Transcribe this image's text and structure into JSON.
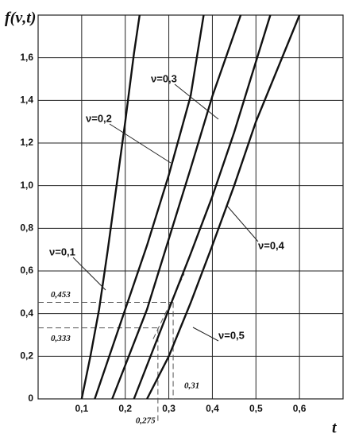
{
  "chart_data": {
    "type": "line",
    "ylabel": "f(ν,t)",
    "xlabel": "t",
    "xlim": [
      0,
      0.7
    ],
    "ylim": [
      0,
      1.8
    ],
    "xticks": [
      {
        "value": 0.1,
        "label": "0,1"
      },
      {
        "value": 0.2,
        "label": "0,2"
      },
      {
        "value": 0.3,
        "label": "0,3"
      },
      {
        "value": 0.4,
        "label": "0,4"
      },
      {
        "value": 0.5,
        "label": "0,5"
      },
      {
        "value": 0.6,
        "label": "0,6"
      }
    ],
    "yticks": [
      0,
      {
        "value": 0.2,
        "label": "0,2"
      },
      {
        "value": 0.4,
        "label": "0,4"
      },
      {
        "value": 0.6,
        "label": "0,6"
      },
      {
        "value": 0.8,
        "label": "0,8"
      },
      {
        "value": 1.0,
        "label": "1,0"
      },
      {
        "value": 1.2,
        "label": "1,2"
      },
      {
        "value": 1.4,
        "label": "1,4"
      },
      {
        "value": 1.6,
        "label": "1,6"
      }
    ],
    "grid": true,
    "series": [
      {
        "name": "ν=0,1",
        "color": "#111111",
        "x": [
          0.1,
          0.12,
          0.14,
          0.16,
          0.18,
          0.2,
          0.22,
          0.233
        ],
        "values": [
          0,
          0.2,
          0.42,
          0.7,
          1.0,
          1.3,
          1.62,
          1.8
        ]
      },
      {
        "name": "ν=0,2",
        "color": "#111111",
        "x": [
          0.13,
          0.2,
          0.25,
          0.3,
          0.35,
          0.38
        ],
        "values": [
          0,
          0.42,
          0.72,
          1.05,
          1.42,
          1.8
        ]
      },
      {
        "name": "ν=0,3",
        "color": "#111111",
        "x": [
          0.17,
          0.25,
          0.3,
          0.35,
          0.4,
          0.465
        ],
        "values": [
          0,
          0.42,
          0.75,
          1.08,
          1.42,
          1.8
        ]
      },
      {
        "name": "ν=0,4",
        "color": "#111111",
        "x": [
          0.22,
          0.3,
          0.35,
          0.4,
          0.45,
          0.533
        ],
        "values": [
          0,
          0.42,
          0.68,
          0.95,
          1.25,
          1.8
        ]
      },
      {
        "name": "ν=0,5",
        "color": "#111111",
        "x": [
          0.25,
          0.3,
          0.35,
          0.4,
          0.45,
          0.5,
          0.6
        ],
        "values": [
          0,
          0.2,
          0.45,
          0.72,
          1.0,
          1.3,
          1.8
        ]
      }
    ],
    "annotations": [
      {
        "t": 0.275,
        "f": 0.333,
        "t_label": "0,275",
        "f_label": "0,333"
      },
      {
        "t": 0.31,
        "f": 0.453,
        "t_label": "0,31",
        "f_label": "0,453"
      }
    ]
  }
}
